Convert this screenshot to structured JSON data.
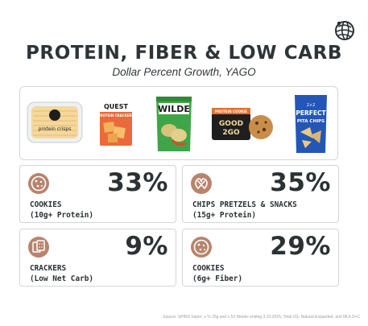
{
  "header": {
    "title": "PROTEIN, FIBER & LOW CARB",
    "subtitle": "Dollar Percent Growth, YAGO",
    "logo_icon": "globe-icon"
  },
  "products": [
    {
      "name": "protein-crisps",
      "text": "protein crisps"
    },
    {
      "name": "quest-crackers",
      "text": "QUEST",
      "text2": "PROTEIN CRACKERS"
    },
    {
      "name": "wilde-chips",
      "text": "WILDE"
    },
    {
      "name": "good-to-go-cookie",
      "text": "PROTEIN COOKIE",
      "text2": "GOOD",
      "text3": "2GO"
    },
    {
      "name": "perfect-pita-chips",
      "text": "PERFECT",
      "text2": "PITA CHIPS"
    }
  ],
  "cards": [
    {
      "icon": "cookie-icon",
      "value": "33%",
      "label_line1": "COOKIES",
      "label_line2": "(10g+ Protein)"
    },
    {
      "icon": "pretzel-icon",
      "value": "35%",
      "label_line1": "CHIPS PRETZELS & SNACKS",
      "label_line2": "(15g+ Protein)"
    },
    {
      "icon": "crackers-icon",
      "value": "9%",
      "label_line1": "CRACKERS",
      "label_line2": "(Low Net Carb)"
    },
    {
      "icon": "cookie-icon",
      "value": "29%",
      "label_line1": "COOKIES",
      "label_line2": "(6g+ Fiber)"
    }
  ],
  "footer": {
    "source": "Source: SPINS Satori; ≥ % 25g and ≥ 52 Weeks ending 3.23.2025, Total US- Natural Expanded, and MULO+C"
  },
  "colors": {
    "text": "#2b3134",
    "border": "#d2d6d9",
    "icon_bg": "#b8846d"
  }
}
